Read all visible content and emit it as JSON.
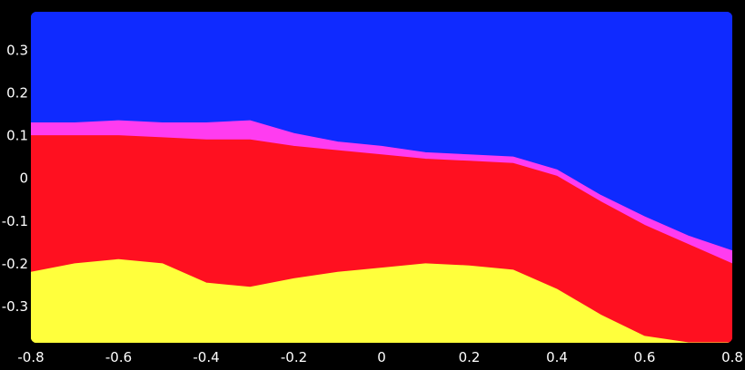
{
  "chart_data": {
    "type": "area",
    "title": "",
    "xlabel": "",
    "ylabel": "",
    "xlim": [
      -0.8,
      0.8
    ],
    "ylim": [
      -0.385,
      0.39
    ],
    "legend": "none",
    "grid": false,
    "background_color": "#000000",
    "x_ticks": [
      {
        "value": -0.8,
        "label": "-0.8"
      },
      {
        "value": -0.6,
        "label": "-0.6"
      },
      {
        "value": -0.4,
        "label": "-0.4"
      },
      {
        "value": -0.2,
        "label": "-0.2"
      },
      {
        "value": 0,
        "label": "0"
      },
      {
        "value": 0.2,
        "label": "0.2"
      },
      {
        "value": 0.4,
        "label": "0.4"
      },
      {
        "value": 0.6,
        "label": "0.6"
      },
      {
        "value": 0.8,
        "label": "0.8"
      }
    ],
    "y_ticks": [
      {
        "value": 0.3,
        "label": "0.3"
      },
      {
        "value": 0.2,
        "label": "0.2"
      },
      {
        "value": 0.1,
        "label": "0.1"
      },
      {
        "value": 0,
        "label": "0"
      },
      {
        "value": -0.1,
        "label": "-0.1"
      },
      {
        "value": -0.2,
        "label": "-0.2"
      },
      {
        "value": -0.3,
        "label": "-0.3"
      }
    ],
    "x": [
      -0.8,
      -0.7,
      -0.6,
      -0.5,
      -0.4,
      -0.3,
      -0.2,
      -0.1,
      0,
      0.1,
      0.2,
      0.3,
      0.4,
      0.5,
      0.6,
      0.7,
      0.8
    ],
    "regions": [
      {
        "color": "#0f2aff",
        "lower": "magenta_top",
        "upper": "top"
      },
      {
        "color": "#ff3cf0",
        "lower": "red_top",
        "upper": "magenta_top"
      },
      {
        "color": "#ff1020",
        "lower": "yellow_top",
        "upper": "red_top"
      },
      {
        "color": "#ffff3c",
        "lower": "bottom",
        "upper": "yellow_top"
      }
    ],
    "boundaries": {
      "magenta_top": [
        0.13,
        0.13,
        0.135,
        0.13,
        0.13,
        0.135,
        0.105,
        0.085,
        0.075,
        0.06,
        0.055,
        0.05,
        0.02,
        -0.04,
        -0.09,
        -0.135,
        -0.17
      ],
      "red_top": [
        0.1,
        0.1,
        0.1,
        0.095,
        0.09,
        0.09,
        0.075,
        0.065,
        0.055,
        0.045,
        0.04,
        0.035,
        0.005,
        -0.055,
        -0.11,
        -0.155,
        -0.2
      ],
      "yellow_top": [
        -0.22,
        -0.2,
        -0.19,
        -0.2,
        -0.245,
        -0.255,
        -0.235,
        -0.22,
        -0.21,
        -0.2,
        -0.205,
        -0.215,
        -0.26,
        -0.32,
        -0.37,
        -0.385,
        -0.385
      ]
    }
  }
}
